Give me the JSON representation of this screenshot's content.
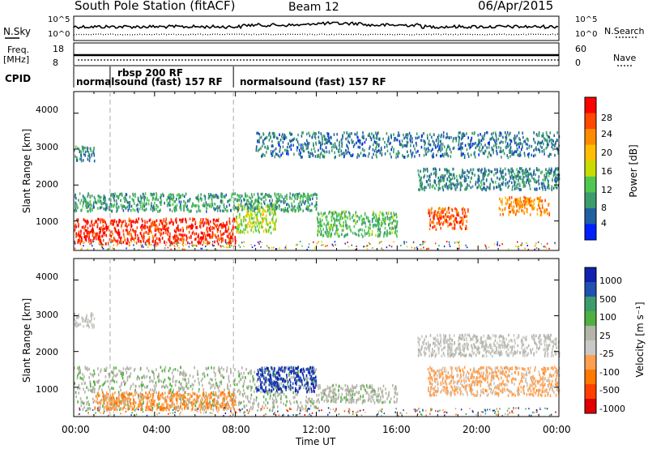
{
  "header": {
    "station": "South Pole Station (fitACF)",
    "beam": "Beam 12",
    "date": "06/Apr/2015"
  },
  "param_panels": {
    "nsky_label": "N.Sky",
    "nsearch_label": "N.Search",
    "left_ticks_top": [
      "10^5",
      "10^0"
    ],
    "right_ticks_top": [
      "10^5",
      "10^0"
    ],
    "freq_label": "Freq.",
    "freq_unit": "[MHz]",
    "freq_ticks": [
      "18",
      "8"
    ],
    "nave_ticks": [
      "60",
      "0"
    ],
    "nave_label": "Nave",
    "cpid_label": "CPID",
    "cpid_segments": [
      {
        "label": "normalsound (fast) 157 RF",
        "start_hour": 0.0,
        "end_hour": 1.8
      },
      {
        "label": "rbsp 200 RF",
        "start_hour": 1.8,
        "end_hour": 7.9
      },
      {
        "label": "normalsound (fast) 157 RF",
        "start_hour": 7.9,
        "end_hour": 24.0
      }
    ]
  },
  "power_colorbar": {
    "label": "Power [dB]",
    "ticks": [
      "28",
      "24",
      "20",
      "16",
      "12",
      "8",
      "4"
    ],
    "colors": [
      "#ff0000",
      "#ff4800",
      "#ff8c00",
      "#ffbe00",
      "#c8dc00",
      "#50c850",
      "#3c9c6c",
      "#2060a0",
      "#0020ff"
    ]
  },
  "velocity_colorbar": {
    "label": "Velocity [m s⁻¹]",
    "ticks": [
      "1000",
      "500",
      "100",
      "25",
      "-25",
      "-100",
      "-500",
      "-1000"
    ],
    "colors": [
      "#1020b0",
      "#2050b0",
      "#3c9c6c",
      "#50b040",
      "#b4b4a8",
      "#c8c8c8",
      "#ffa050",
      "#ff7800",
      "#ff4000",
      "#e00000"
    ]
  },
  "axes": {
    "ylabel": "Slant Range [km]",
    "yticks": [
      "4000",
      "3000",
      "2000",
      "1000"
    ],
    "xticks": [
      "00:00",
      "04:00",
      "08:00",
      "12:00",
      "16:00",
      "20:00",
      "00:00"
    ],
    "xlabel": "Time UT"
  },
  "chart_data": [
    {
      "type": "heatmap",
      "title": "Power [dB]",
      "xlabel": "Time UT",
      "ylabel": "Slant Range [km]",
      "xlim_hours": [
        0,
        24
      ],
      "ylim_km": [
        180,
        4600
      ],
      "value_range_db": [
        0,
        30
      ],
      "regions": [
        {
          "t0": 0.0,
          "t1": 8.0,
          "r0": 400,
          "r1": 1100,
          "value": 28
        },
        {
          "t0": 8.0,
          "t1": 10.0,
          "r0": 700,
          "r1": 1500,
          "value": 14
        },
        {
          "t0": 0.0,
          "t1": 12.0,
          "r0": 1300,
          "r1": 1800,
          "value": 8
        },
        {
          "t0": 0.0,
          "t1": 1.0,
          "r0": 2700,
          "r1": 3100,
          "value": 6
        },
        {
          "t0": 12.0,
          "t1": 16.0,
          "r0": 600,
          "r1": 1300,
          "value": 10
        },
        {
          "t0": 17.5,
          "t1": 19.5,
          "r0": 800,
          "r1": 1400,
          "value": 26
        },
        {
          "t0": 21.0,
          "t1": 23.5,
          "r0": 1200,
          "r1": 1700,
          "value": 22
        },
        {
          "t0": 17.0,
          "t1": 24.0,
          "r0": 1900,
          "r1": 2500,
          "value": 6
        },
        {
          "t0": 9.0,
          "t1": 24.0,
          "r0": 2800,
          "r1": 3500,
          "value": 5
        }
      ]
    },
    {
      "type": "heatmap",
      "title": "Velocity [m s⁻¹]",
      "xlabel": "Time UT",
      "ylabel": "Slant Range [km]",
      "xlim_hours": [
        0,
        24
      ],
      "ylim_km": [
        180,
        4600
      ],
      "value_range_ms": [
        -1000,
        1000
      ],
      "regions": [
        {
          "t0": 0.0,
          "t1": 12.0,
          "r0": 400,
          "r1": 1600,
          "value": 150
        },
        {
          "t0": 1.0,
          "t1": 8.0,
          "r0": 400,
          "r1": 900,
          "value": -400
        },
        {
          "t0": 9.0,
          "t1": 12.0,
          "r0": 900,
          "r1": 1600,
          "value": 900
        },
        {
          "t0": 12.0,
          "t1": 16.0,
          "r0": 600,
          "r1": 1100,
          "value": 120
        },
        {
          "t0": 17.5,
          "t1": 24.0,
          "r0": 800,
          "r1": 1600,
          "value": -300
        },
        {
          "t0": 17.0,
          "t1": 24.0,
          "r0": 1900,
          "r1": 2500,
          "value": -10
        },
        {
          "t0": 0.0,
          "t1": 1.0,
          "r0": 2700,
          "r1": 3100,
          "value": 10
        }
      ]
    }
  ]
}
